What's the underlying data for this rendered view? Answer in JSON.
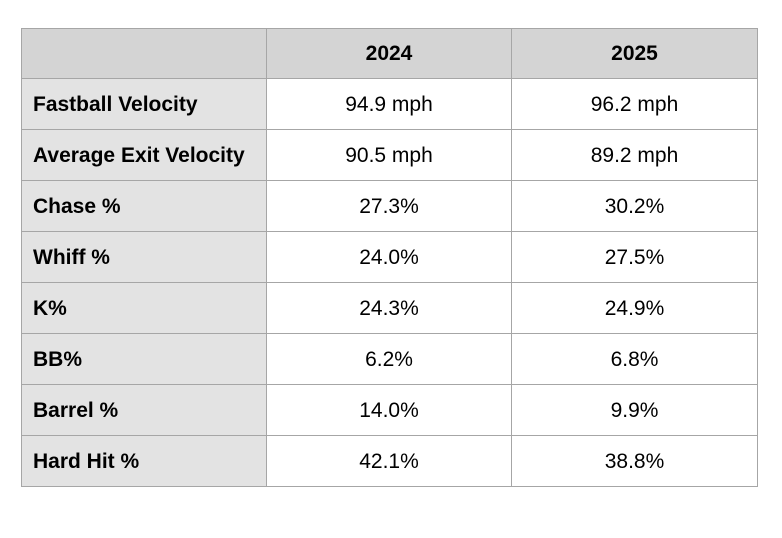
{
  "table": {
    "columns": [
      "2024",
      "2025"
    ],
    "rows": [
      [
        "Fastball Velocity",
        "94.9 mph",
        "96.2 mph"
      ],
      [
        "Average Exit Velocity",
        "90.5 mph",
        "89.2 mph"
      ],
      [
        "Chase %",
        "27.3%",
        "30.2%"
      ],
      [
        "Whiff %",
        "24.0%",
        "27.5%"
      ],
      [
        "K%",
        "24.3%",
        "24.9%"
      ],
      [
        "BB%",
        "6.2%",
        "6.8%"
      ],
      [
        "Barrel %",
        "14.0%",
        "9.9%"
      ],
      [
        "Hard Hit %",
        "42.1%",
        "38.8%"
      ]
    ]
  }
}
